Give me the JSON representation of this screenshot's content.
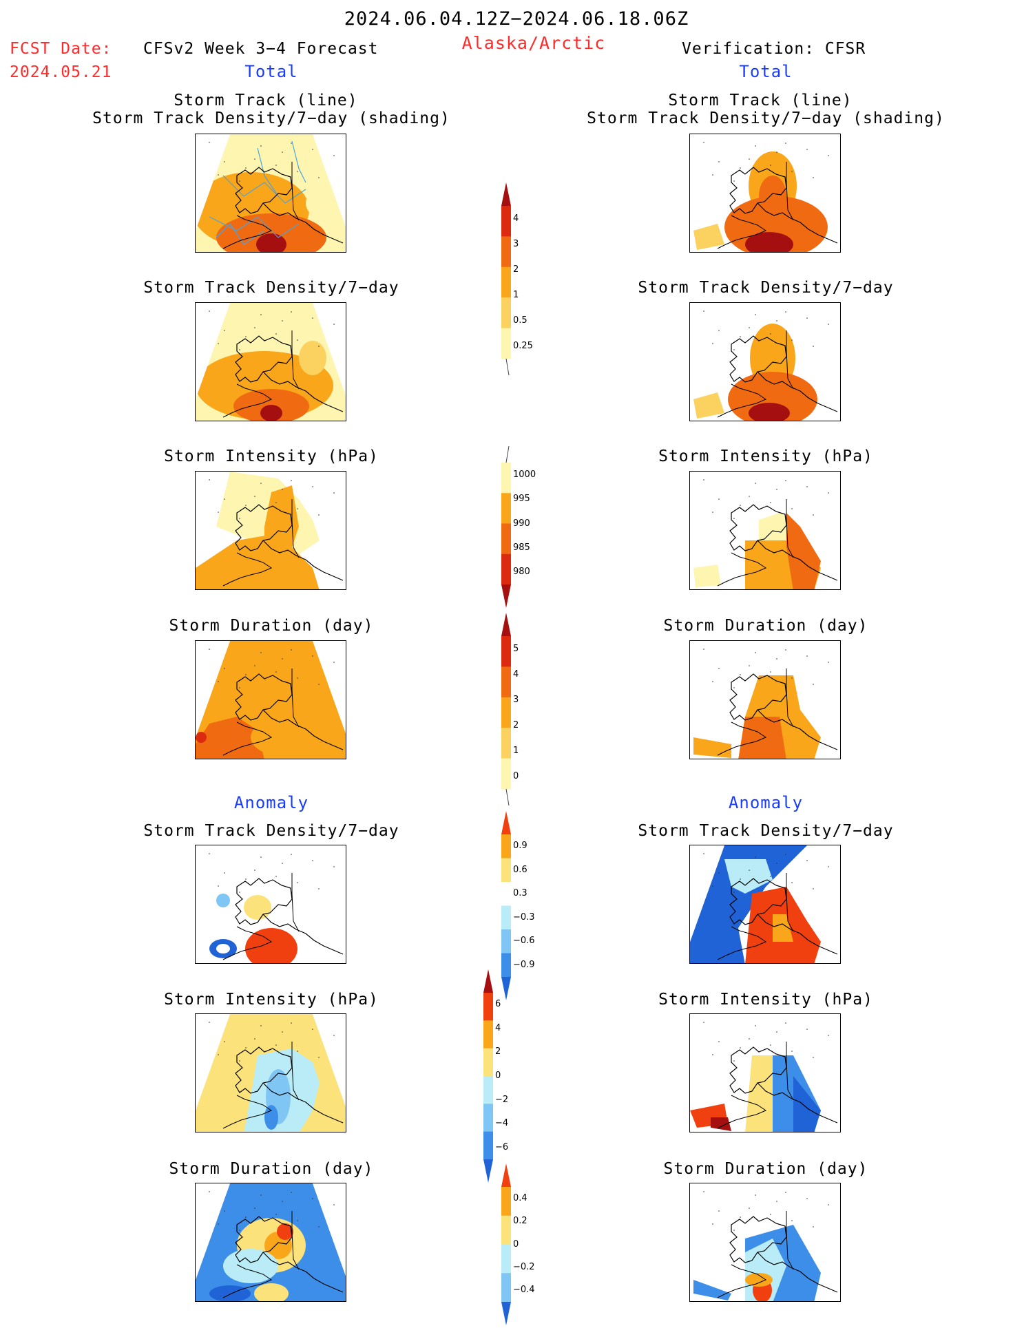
{
  "header": {
    "period": "2024.06.04.12Z−2024.06.18.06Z",
    "region": "Alaska/Arctic",
    "fcst_date_label": "FCST Date:",
    "fcst_date_value": "2024.05.21",
    "model_label": "CFSv2 Week 3−4 Forecast",
    "verification_label": "Verification: CFSR",
    "left_total": "Total",
    "right_total": "Total",
    "left_anomaly": "Anomaly",
    "right_anomaly": "Anomaly"
  },
  "panel_titles": {
    "track_line": "Storm Track (line)",
    "track_shading": "Storm Track Density/7−day (shading)",
    "density": "Storm Track Density/7−day",
    "intensity": "Storm Intensity (hPa)",
    "duration": "Storm Duration (day)"
  },
  "colorbars": {
    "density_total": {
      "labels": [
        "4",
        "3",
        "2",
        "1",
        "0.5",
        "0.25"
      ],
      "colors": [
        "#a50f0f",
        "#dc2a10",
        "#f06a12",
        "#f9a61a",
        "#fbd25f",
        "#fdf5b0"
      ]
    },
    "intensity_total": {
      "labels": [
        "1000",
        "995",
        "990",
        "985",
        "980"
      ],
      "colors": [
        "#fdf5b0",
        "#f9a61a",
        "#f06a12",
        "#dc2a10",
        "#a50f0f"
      ]
    },
    "duration_total": {
      "labels": [
        "5",
        "4",
        "3",
        "2",
        "1",
        "0"
      ],
      "colors": [
        "#a50f0f",
        "#dc2a10",
        "#f06a12",
        "#f9a61a",
        "#fbd25f",
        "#fdf5b0"
      ]
    },
    "density_anom": {
      "labels": [
        "0.9",
        "0.6",
        "0.3",
        "−0.3",
        "−0.6",
        "−0.9"
      ],
      "colors": [
        "#f04010",
        "#f9a61a",
        "#fbe27a",
        "#ffffff",
        "#b9ecf7",
        "#7fc6f4",
        "#3d8ee8",
        "#1f63d6"
      ]
    },
    "intensity_anom": {
      "labels": [
        "6",
        "4",
        "2",
        "0",
        "−2",
        "−4",
        "−6"
      ],
      "colors": [
        "#a50f0f",
        "#f04010",
        "#f9a61a",
        "#fbe27a",
        "#b9ecf7",
        "#7fc6f4",
        "#3d8ee8",
        "#1f63d6"
      ]
    },
    "duration_anom": {
      "labels": [
        "0.4",
        "0.2",
        "0",
        "−0.2",
        "−0.4"
      ],
      "colors": [
        "#f04010",
        "#f9a61a",
        "#fbe27a",
        "#b9ecf7",
        "#7fc6f4",
        "#1f63d6"
      ]
    }
  }
}
